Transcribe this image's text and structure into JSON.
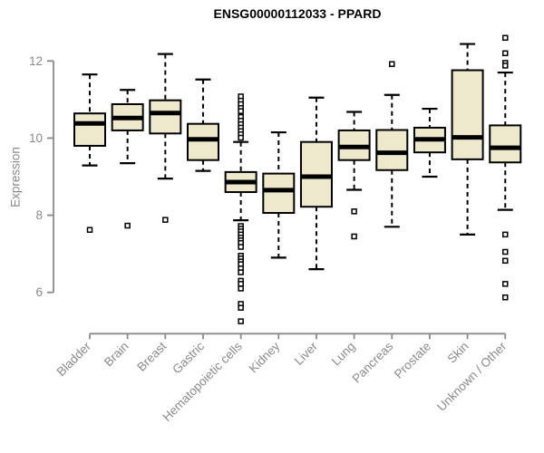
{
  "chart_data": {
    "type": "boxplot",
    "title": "ENSG00000112033 - PPARD",
    "ylabel": "Expression",
    "yticks": [
      6,
      8,
      10,
      12
    ],
    "ylim": [
      5.0,
      12.8
    ],
    "grid": false,
    "categories": [
      "Bladder",
      "Brain",
      "Breast",
      "Gastric",
      "Hematopoietic cells",
      "Kidney",
      "Liver",
      "Lung",
      "Pancreas",
      "Prostate",
      "Skin",
      "Unknown / Other"
    ],
    "boxes": [
      {
        "category": "Bladder",
        "whisker_low": 9.29,
        "q1": 9.8,
        "median": 10.38,
        "q3": 10.64,
        "whisker_high": 11.65,
        "outliers": [
          7.62
        ]
      },
      {
        "category": "Brain",
        "whisker_low": 9.35,
        "q1": 10.2,
        "median": 10.52,
        "q3": 10.88,
        "whisker_high": 11.25,
        "outliers": [
          7.73
        ]
      },
      {
        "category": "Breast",
        "whisker_low": 8.95,
        "q1": 10.12,
        "median": 10.65,
        "q3": 10.98,
        "whisker_high": 12.18,
        "outliers": [
          7.88
        ]
      },
      {
        "category": "Gastric",
        "whisker_low": 9.15,
        "q1": 9.43,
        "median": 9.97,
        "q3": 10.37,
        "whisker_high": 11.52,
        "outliers": []
      },
      {
        "category": "Hematopoietic cells",
        "whisker_low": 7.87,
        "q1": 8.6,
        "median": 8.86,
        "q3": 9.12,
        "whisker_high": 9.9,
        "outliers": [
          11.08,
          10.97,
          10.88,
          10.78,
          10.7,
          10.55,
          10.45,
          10.36,
          10.27,
          10.18,
          10.1,
          10.01,
          7.72,
          7.65,
          7.58,
          7.5,
          7.42,
          7.35,
          7.28,
          7.18,
          6.95,
          6.88,
          6.8,
          6.73,
          6.62,
          6.52,
          6.3,
          6.22,
          6.1,
          5.7,
          5.6,
          5.25
        ]
      },
      {
        "category": "Kidney",
        "whisker_low": 6.9,
        "q1": 8.06,
        "median": 8.65,
        "q3": 9.08,
        "whisker_high": 10.15,
        "outliers": []
      },
      {
        "category": "Liver",
        "whisker_low": 6.6,
        "q1": 8.22,
        "median": 9.0,
        "q3": 9.9,
        "whisker_high": 11.05,
        "outliers": []
      },
      {
        "category": "Lung",
        "whisker_low": 8.66,
        "q1": 9.43,
        "median": 9.77,
        "q3": 10.2,
        "whisker_high": 10.68,
        "outliers": [
          8.1,
          7.45
        ]
      },
      {
        "category": "Pancreas",
        "whisker_low": 7.7,
        "q1": 9.17,
        "median": 9.62,
        "q3": 10.21,
        "whisker_high": 11.12,
        "outliers": [
          11.92
        ]
      },
      {
        "category": "Prostate",
        "whisker_low": 9.0,
        "q1": 9.63,
        "median": 9.97,
        "q3": 10.27,
        "whisker_high": 10.76,
        "outliers": []
      },
      {
        "category": "Skin",
        "whisker_low": 7.5,
        "q1": 9.45,
        "median": 10.02,
        "q3": 11.76,
        "whisker_high": 12.44,
        "outliers": []
      },
      {
        "category": "Unknown / Other",
        "whisker_low": 8.14,
        "q1": 9.37,
        "median": 9.75,
        "q3": 10.33,
        "whisker_high": 11.7,
        "outliers": [
          12.6,
          12.2,
          11.95,
          11.88,
          7.5,
          7.05,
          6.82,
          6.22,
          5.87
        ]
      }
    ],
    "colors": {
      "box_fill": "#EEE8CD",
      "box_stroke": "#000000",
      "axis": "#8a8a8a",
      "title": "#000000",
      "background": "#ffffff"
    }
  }
}
